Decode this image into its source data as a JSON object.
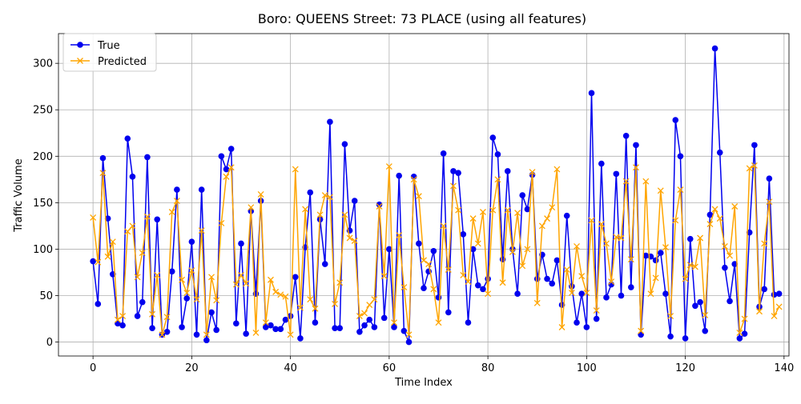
{
  "chart_data": {
    "type": "line",
    "title": "Boro: QUEENS Street: 73 PLACE (using all features)",
    "xlabel": "Time Index",
    "ylabel": "Traffic Volume",
    "xlim": [
      -7,
      141
    ],
    "ylim": [
      -15,
      332
    ],
    "xticks": [
      0,
      20,
      40,
      60,
      80,
      100,
      120,
      140
    ],
    "yticks": [
      0,
      50,
      100,
      150,
      200,
      250,
      300
    ],
    "grid": true,
    "legend_position": "upper-left",
    "series": [
      {
        "name": "True",
        "color": "#0000ee",
        "marker": "circle",
        "values": [
          87,
          41,
          198,
          133,
          73,
          20,
          18,
          219,
          178,
          28,
          43,
          199,
          15,
          132,
          8,
          11,
          76,
          164,
          16,
          47,
          108,
          8,
          164,
          2,
          32,
          13,
          200,
          186,
          208,
          20,
          106,
          9,
          141,
          52,
          152,
          16,
          18,
          14,
          14,
          24,
          28,
          70,
          4,
          102,
          161,
          21,
          132,
          84,
          237,
          15,
          15,
          213,
          120,
          152,
          11,
          18,
          24,
          16,
          148,
          26,
          100,
          16,
          179,
          12,
          0,
          178,
          106,
          58,
          76,
          98,
          48,
          203,
          32,
          184,
          182,
          116,
          21,
          100,
          61,
          57,
          68,
          220,
          202,
          89,
          184,
          100,
          52,
          158,
          143,
          180,
          68,
          94,
          68,
          63,
          88,
          40,
          136,
          60,
          21,
          52,
          16,
          268,
          25,
          192,
          48,
          62,
          181,
          50,
          222,
          59,
          212,
          8,
          93,
          92,
          88,
          96,
          52,
          6,
          239,
          200,
          4,
          111,
          39,
          43,
          12,
          137,
          316,
          204,
          80,
          44,
          84,
          4,
          9,
          118,
          212,
          38,
          57,
          176,
          51,
          52
        ]
      },
      {
        "name": "Predicted",
        "color": "#ffa500",
        "marker": "x",
        "values": [
          134,
          86,
          182,
          92,
          108,
          24,
          28,
          119,
          125,
          70,
          96,
          135,
          30,
          72,
          8,
          27,
          140,
          152,
          67,
          53,
          77,
          46,
          120,
          8,
          70,
          45,
          128,
          178,
          188,
          62,
          72,
          63,
          145,
          10,
          159,
          21,
          67,
          54,
          51,
          49,
          8,
          186,
          37,
          143,
          46,
          36,
          137,
          158,
          156,
          41,
          64,
          137,
          112,
          109,
          28,
          31,
          40,
          46,
          146,
          71,
          189,
          21,
          115,
          59,
          8,
          175,
          157,
          88,
          84,
          57,
          21,
          125,
          78,
          168,
          142,
          72,
          65,
          133,
          106,
          140,
          52,
          142,
          175,
          64,
          142,
          97,
          139,
          82,
          100,
          183,
          42,
          125,
          133,
          145,
          186,
          16,
          78,
          53,
          103,
          71,
          53,
          131,
          34,
          127,
          106,
          65,
          113,
          112,
          173,
          89,
          188,
          12,
          173,
          52,
          69,
          163,
          102,
          28,
          131,
          164,
          68,
          83,
          81,
          112,
          29,
          127,
          143,
          133,
          103,
          93,
          146,
          10,
          25,
          187,
          190,
          33,
          106,
          151,
          28,
          38
        ]
      }
    ]
  }
}
